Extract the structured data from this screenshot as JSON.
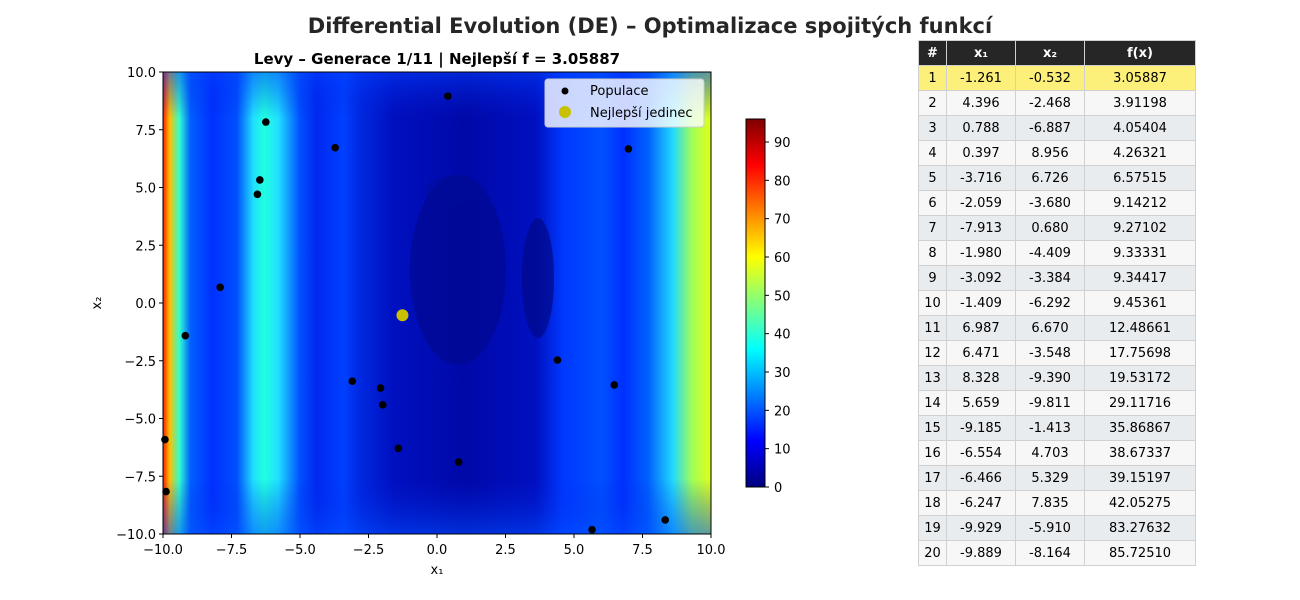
{
  "figure": {
    "suptitle": "Differential Evolution (DE) – Optimalizace spojitých funkcí"
  },
  "chart_data": [
    {
      "type": "scatter",
      "title": "Levy – Generace 1/11 | Nejlepší f = 3.05887",
      "xlabel": "x₁",
      "ylabel": "x₂",
      "xlim": [
        -10,
        10
      ],
      "ylim": [
        -10,
        10
      ],
      "x_ticks": [
        "−10.0",
        "−7.5",
        "−5.0",
        "−2.5",
        "0.0",
        "2.5",
        "5.0",
        "7.5",
        "10.0"
      ],
      "y_ticks": [
        "−10.0",
        "−7.5",
        "−5.0",
        "−2.5",
        "0.0",
        "2.5",
        "5.0",
        "7.5",
        "10.0"
      ],
      "background": "filled contour of Levy function (jet colormap)",
      "colorbar": {
        "min": 0,
        "max": 96,
        "ticks": [
          "0",
          "10",
          "20",
          "30",
          "40",
          "50",
          "60",
          "70",
          "80",
          "90"
        ]
      },
      "legend": {
        "position": "top-right",
        "entries": [
          "Populace",
          "Nejlepší jedinec"
        ]
      },
      "series": [
        {
          "name": "Populace",
          "color": "#000000",
          "points": [
            {
              "x": -1.261,
              "y": -0.532
            },
            {
              "x": 4.396,
              "y": -2.468
            },
            {
              "x": 0.788,
              "y": -6.887
            },
            {
              "x": 0.397,
              "y": 8.956
            },
            {
              "x": -3.716,
              "y": 6.726
            },
            {
              "x": -2.059,
              "y": -3.68
            },
            {
              "x": -7.913,
              "y": 0.68
            },
            {
              "x": -1.98,
              "y": -4.409
            },
            {
              "x": -3.092,
              "y": -3.384
            },
            {
              "x": -1.409,
              "y": -6.292
            },
            {
              "x": 6.987,
              "y": 6.67
            },
            {
              "x": 6.471,
              "y": -3.548
            },
            {
              "x": 8.328,
              "y": -9.39
            },
            {
              "x": 5.659,
              "y": -9.811
            },
            {
              "x": -9.185,
              "y": -1.413
            },
            {
              "x": -6.554,
              "y": 4.703
            },
            {
              "x": -6.466,
              "y": 5.329
            },
            {
              "x": -6.247,
              "y": 7.835
            },
            {
              "x": -9.929,
              "y": -5.91
            },
            {
              "x": -9.889,
              "y": -8.164
            }
          ]
        },
        {
          "name": "Nejlepší jedinec",
          "color": "#c8c000",
          "points": [
            {
              "x": -1.261,
              "y": -0.532
            }
          ]
        }
      ]
    },
    {
      "type": "table",
      "columns": [
        "#",
        "x₁",
        "x₂",
        "f(x)"
      ],
      "rows": [
        [
          "1",
          "-1.261",
          "-0.532",
          "3.05887"
        ],
        [
          "2",
          "4.396",
          "-2.468",
          "3.91198"
        ],
        [
          "3",
          "0.788",
          "-6.887",
          "4.05404"
        ],
        [
          "4",
          "0.397",
          "8.956",
          "4.26321"
        ],
        [
          "5",
          "-3.716",
          "6.726",
          "6.57515"
        ],
        [
          "6",
          "-2.059",
          "-3.680",
          "9.14212"
        ],
        [
          "7",
          "-7.913",
          "0.680",
          "9.27102"
        ],
        [
          "8",
          "-1.980",
          "-4.409",
          "9.33331"
        ],
        [
          "9",
          "-3.092",
          "-3.384",
          "9.34417"
        ],
        [
          "10",
          "-1.409",
          "-6.292",
          "9.45361"
        ],
        [
          "11",
          "6.987",
          "6.670",
          "12.48661"
        ],
        [
          "12",
          "6.471",
          "-3.548",
          "17.75698"
        ],
        [
          "13",
          "8.328",
          "-9.390",
          "19.53172"
        ],
        [
          "14",
          "5.659",
          "-9.811",
          "29.11716"
        ],
        [
          "15",
          "-9.185",
          "-1.413",
          "35.86867"
        ],
        [
          "16",
          "-6.554",
          "4.703",
          "38.67337"
        ],
        [
          "17",
          "-6.466",
          "5.329",
          "39.15197"
        ],
        [
          "18",
          "-6.247",
          "7.835",
          "42.05275"
        ],
        [
          "19",
          "-9.929",
          "-5.910",
          "83.27632"
        ],
        [
          "20",
          "-9.889",
          "-8.164",
          "85.72510"
        ]
      ],
      "highlight_color": "#fdf07a"
    }
  ]
}
